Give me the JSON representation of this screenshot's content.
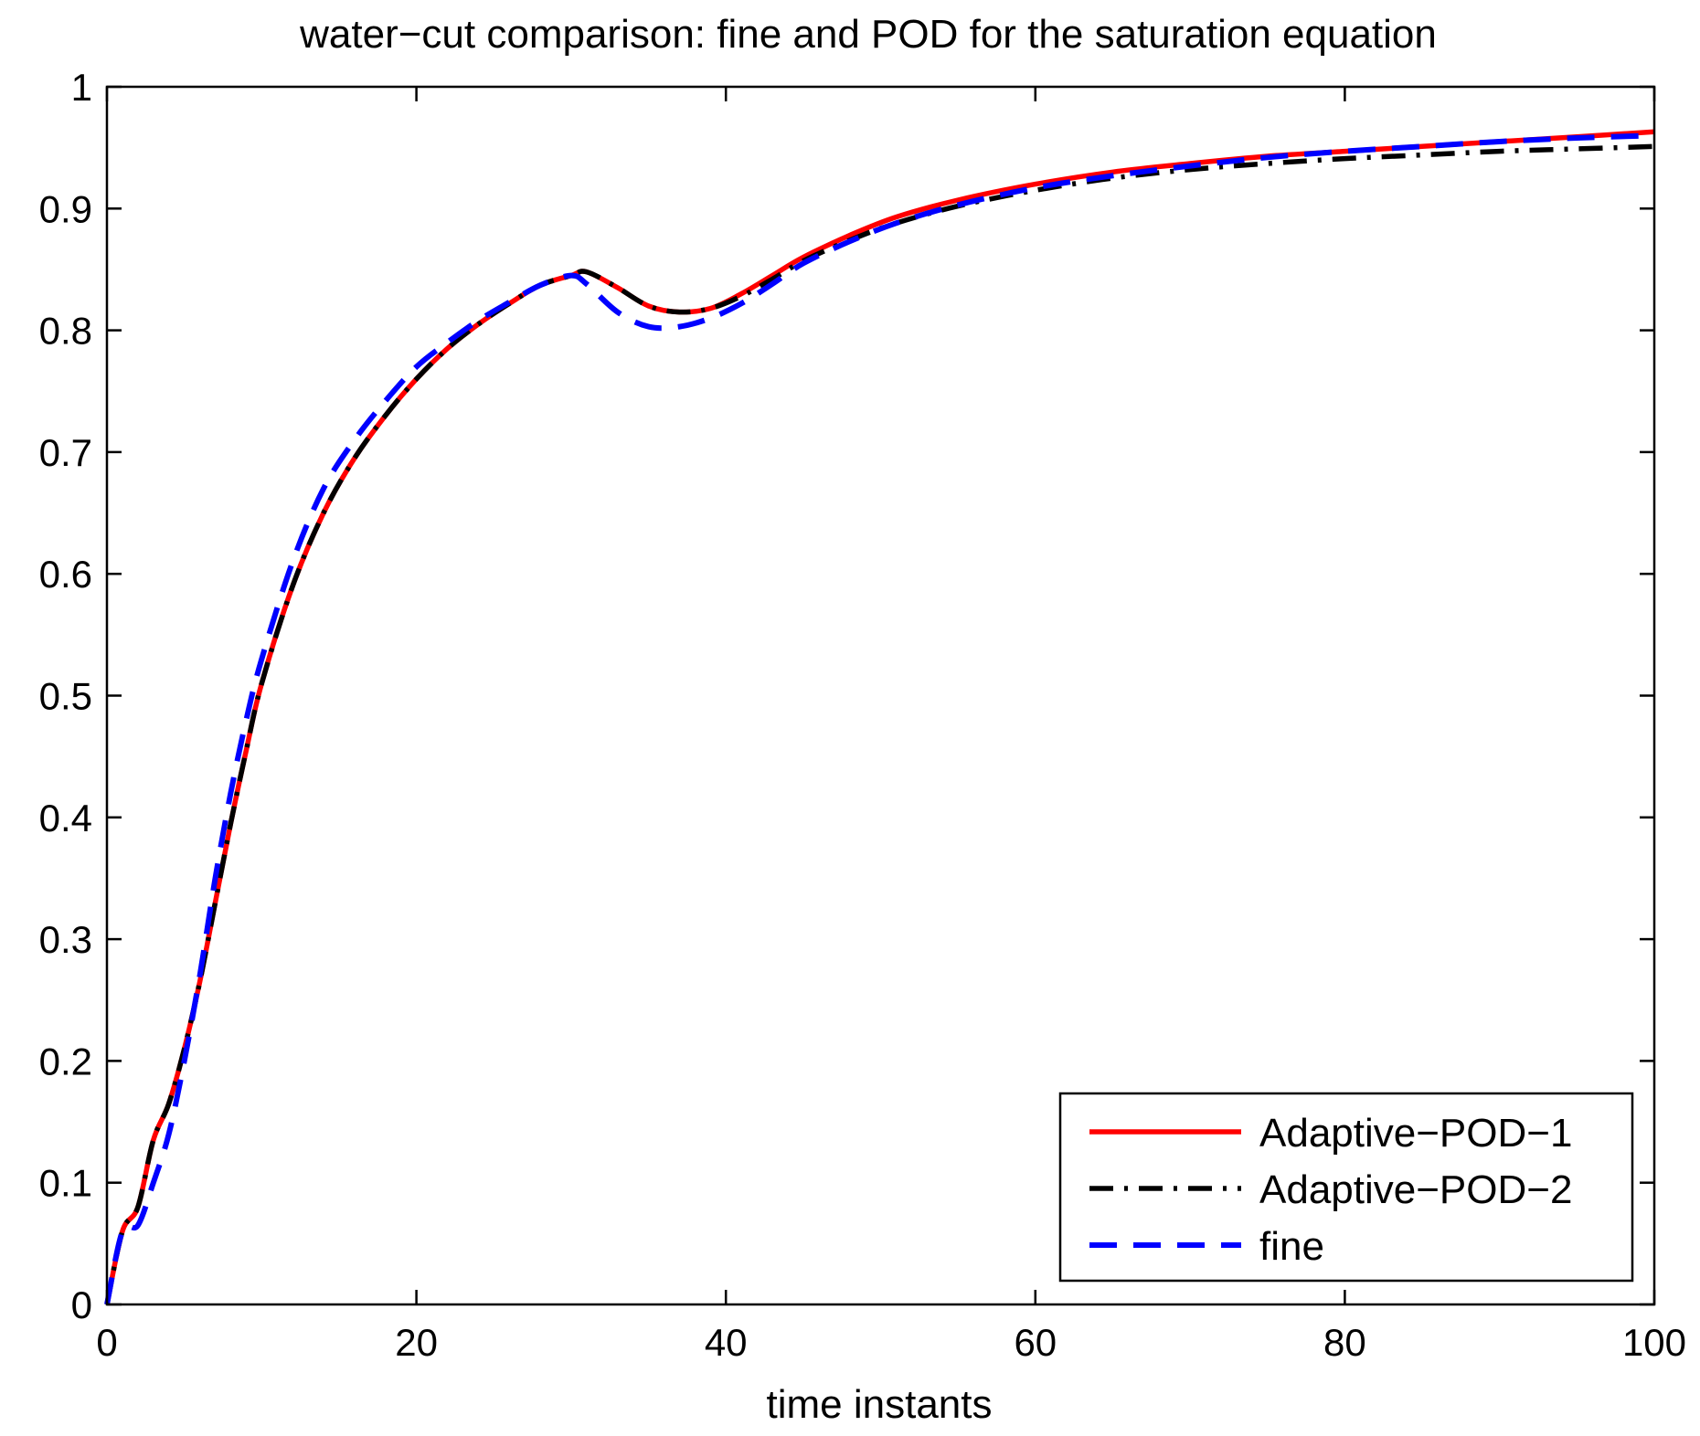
{
  "chart_data": {
    "type": "line",
    "title": "water−cut comparison: fine and POD for the saturation equation",
    "xlabel": "time instants",
    "ylabel": "",
    "xlim": [
      0,
      100
    ],
    "ylim": [
      0,
      1
    ],
    "xticks": [
      0,
      20,
      40,
      60,
      80,
      100
    ],
    "xtick_labels": [
      "0",
      "20",
      "40",
      "60",
      "80",
      "100"
    ],
    "yticks": [
      0,
      0.1,
      0.2,
      0.3,
      0.4,
      0.5,
      0.6,
      0.7,
      0.8,
      0.9,
      1
    ],
    "ytick_labels": [
      "0",
      "0.1",
      "0.2",
      "0.3",
      "0.4",
      "0.5",
      "0.6",
      "0.7",
      "0.8",
      "0.9",
      "1"
    ],
    "grid": false,
    "legend_position": "bottom-right",
    "series": [
      {
        "name": "Adaptive−POD−1",
        "color": "#ff0000",
        "style": "solid",
        "x": [
          0,
          1,
          2,
          3,
          4,
          5,
          6,
          7,
          8,
          9,
          10,
          12,
          14,
          16,
          18,
          20,
          22,
          24,
          26,
          28,
          30,
          31,
          33,
          35,
          37,
          39,
          41,
          43,
          45,
          48,
          51,
          55,
          60,
          65,
          70,
          75,
          80,
          85,
          90,
          95,
          100
        ],
        "y": [
          0,
          0.06,
          0.08,
          0.135,
          0.165,
          0.21,
          0.265,
          0.33,
          0.395,
          0.455,
          0.51,
          0.59,
          0.65,
          0.695,
          0.73,
          0.76,
          0.785,
          0.805,
          0.822,
          0.837,
          0.845,
          0.848,
          0.835,
          0.82,
          0.815,
          0.818,
          0.83,
          0.845,
          0.86,
          0.878,
          0.893,
          0.907,
          0.92,
          0.93,
          0.937,
          0.943,
          0.947,
          0.951,
          0.955,
          0.959,
          0.963
        ]
      },
      {
        "name": "Adaptive−POD−2",
        "color": "#000000",
        "style": "dashdot",
        "x": [
          0,
          1,
          2,
          3,
          4,
          5,
          6,
          7,
          8,
          9,
          10,
          12,
          14,
          16,
          18,
          20,
          22,
          24,
          26,
          28,
          30,
          31,
          33,
          35,
          37,
          39,
          41,
          43,
          45,
          48,
          51,
          55,
          60,
          65,
          70,
          75,
          80,
          85,
          90,
          95,
          100
        ],
        "y": [
          0,
          0.06,
          0.08,
          0.135,
          0.165,
          0.21,
          0.265,
          0.33,
          0.395,
          0.455,
          0.51,
          0.59,
          0.65,
          0.695,
          0.73,
          0.76,
          0.785,
          0.805,
          0.822,
          0.837,
          0.845,
          0.848,
          0.835,
          0.82,
          0.815,
          0.818,
          0.828,
          0.842,
          0.857,
          0.874,
          0.888,
          0.902,
          0.915,
          0.925,
          0.932,
          0.937,
          0.941,
          0.944,
          0.947,
          0.949,
          0.951
        ]
      },
      {
        "name": "fine",
        "color": "#0000ff",
        "style": "dashed",
        "x": [
          0,
          1,
          2,
          3,
          4,
          5,
          6,
          7,
          8,
          9,
          10,
          12,
          14,
          16,
          18,
          20,
          22,
          24,
          26,
          28,
          30,
          31,
          33,
          35,
          37,
          39,
          41,
          43,
          45,
          48,
          51,
          55,
          60,
          65,
          70,
          75,
          80,
          85,
          90,
          95,
          100
        ],
        "y": [
          0,
          0.06,
          0.065,
          0.1,
          0.14,
          0.2,
          0.27,
          0.35,
          0.42,
          0.48,
          0.53,
          0.61,
          0.67,
          0.71,
          0.742,
          0.77,
          0.79,
          0.808,
          0.823,
          0.837,
          0.845,
          0.838,
          0.815,
          0.803,
          0.803,
          0.81,
          0.822,
          0.838,
          0.855,
          0.873,
          0.888,
          0.903,
          0.917,
          0.927,
          0.935,
          0.942,
          0.947,
          0.951,
          0.955,
          0.958,
          0.96
        ]
      }
    ]
  }
}
